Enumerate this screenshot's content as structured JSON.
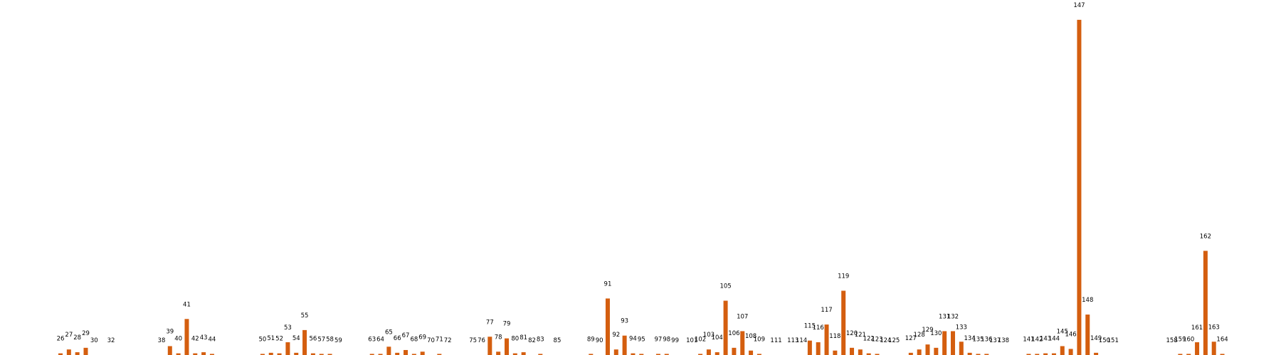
{
  "chart_data": {
    "type": "bar",
    "title": "",
    "xlabel": "",
    "ylabel": "",
    "ylim": [
      0,
      61
    ],
    "grid": false,
    "legend": "none",
    "colors": {
      "bar": "#D45E0F",
      "text": "#000000",
      "background": "#ffffff"
    },
    "points": [
      {
        "x": 26,
        "label": "26",
        "value": 0.3
      },
      {
        "x": 27,
        "label": "27",
        "value": 1.0
      },
      {
        "x": 28,
        "label": "28",
        "value": 0.5
      },
      {
        "x": 29,
        "label": "29",
        "value": 1.3
      },
      {
        "x": 30,
        "label": "30",
        "value": 0.0
      },
      {
        "x": 32,
        "label": "32",
        "value": 0.0
      },
      {
        "x": 38,
        "label": "38",
        "value": 0.0
      },
      {
        "x": 39,
        "label": "39",
        "value": 1.6
      },
      {
        "x": 40,
        "label": "40",
        "value": 0.3
      },
      {
        "x": 41,
        "label": "41",
        "value": 6.5
      },
      {
        "x": 42,
        "label": "42",
        "value": 0.3
      },
      {
        "x": 43,
        "label": "43",
        "value": 0.5
      },
      {
        "x": 44,
        "label": "44",
        "value": 0.2
      },
      {
        "x": 50,
        "label": "50",
        "value": 0.2
      },
      {
        "x": 51,
        "label": "51",
        "value": 0.4
      },
      {
        "x": 52,
        "label": "52",
        "value": 0.3
      },
      {
        "x": 53,
        "label": "53",
        "value": 2.3
      },
      {
        "x": 54,
        "label": "54",
        "value": 0.4
      },
      {
        "x": 55,
        "label": "55",
        "value": 4.5
      },
      {
        "x": 56,
        "label": "56",
        "value": 0.3
      },
      {
        "x": 57,
        "label": "57",
        "value": 0.2
      },
      {
        "x": 58,
        "label": "58",
        "value": 0.2
      },
      {
        "x": 59,
        "label": "59",
        "value": 0.0
      },
      {
        "x": 63,
        "label": "63",
        "value": 0.2
      },
      {
        "x": 64,
        "label": "64",
        "value": 0.2
      },
      {
        "x": 65,
        "label": "65",
        "value": 1.5
      },
      {
        "x": 66,
        "label": "66",
        "value": 0.4
      },
      {
        "x": 67,
        "label": "67",
        "value": 0.9
      },
      {
        "x": 68,
        "label": "68",
        "value": 0.2
      },
      {
        "x": 69,
        "label": "69",
        "value": 0.6
      },
      {
        "x": 70,
        "label": "70",
        "value": 0.0
      },
      {
        "x": 71,
        "label": "71",
        "value": 0.2
      },
      {
        "x": 72,
        "label": "72",
        "value": 0.0
      },
      {
        "x": 75,
        "label": "75",
        "value": 0.0
      },
      {
        "x": 76,
        "label": "76",
        "value": 0.0
      },
      {
        "x": 77,
        "label": "77",
        "value": 3.3
      },
      {
        "x": 78,
        "label": "78",
        "value": 0.6
      },
      {
        "x": 79,
        "label": "79",
        "value": 3.0
      },
      {
        "x": 80,
        "label": "80",
        "value": 0.3
      },
      {
        "x": 81,
        "label": "81",
        "value": 0.5
      },
      {
        "x": 82,
        "label": "82",
        "value": 0.0
      },
      {
        "x": 83,
        "label": "83",
        "value": 0.2
      },
      {
        "x": 85,
        "label": "85",
        "value": 0.0
      },
      {
        "x": 89,
        "label": "89",
        "value": 0.2
      },
      {
        "x": 90,
        "label": "90",
        "value": 0.0
      },
      {
        "x": 91,
        "label": "91",
        "value": 10.2
      },
      {
        "x": 92,
        "label": "92",
        "value": 1.0
      },
      {
        "x": 93,
        "label": "93",
        "value": 3.5
      },
      {
        "x": 94,
        "label": "94",
        "value": 0.3
      },
      {
        "x": 95,
        "label": "95",
        "value": 0.2
      },
      {
        "x": 97,
        "label": "97",
        "value": 0.2
      },
      {
        "x": 98,
        "label": "98",
        "value": 0.2
      },
      {
        "x": 99,
        "label": "99",
        "value": 0.0
      },
      {
        "x": 101,
        "label": "101",
        "value": 0.0
      },
      {
        "x": 102,
        "label": "102",
        "value": 0.2
      },
      {
        "x": 103,
        "label": "103",
        "value": 1.0
      },
      {
        "x": 104,
        "label": "104",
        "value": 0.5
      },
      {
        "x": 105,
        "label": "105",
        "value": 9.8
      },
      {
        "x": 106,
        "label": "106",
        "value": 1.3
      },
      {
        "x": 107,
        "label": "107",
        "value": 4.3
      },
      {
        "x": 108,
        "label": "108",
        "value": 0.8
      },
      {
        "x": 109,
        "label": "109",
        "value": 0.2
      },
      {
        "x": 111,
        "label": "111",
        "value": 0.0
      },
      {
        "x": 113,
        "label": "113",
        "value": 0.0
      },
      {
        "x": 114,
        "label": "114",
        "value": 0.0
      },
      {
        "x": 115,
        "label": "115",
        "value": 2.6
      },
      {
        "x": 116,
        "label": "116",
        "value": 2.3
      },
      {
        "x": 117,
        "label": "117",
        "value": 5.5
      },
      {
        "x": 118,
        "label": "118",
        "value": 0.8
      },
      {
        "x": 119,
        "label": "119",
        "value": 11.6
      },
      {
        "x": 120,
        "label": "120",
        "value": 1.3
      },
      {
        "x": 121,
        "label": "121",
        "value": 1.0
      },
      {
        "x": 122,
        "label": "122",
        "value": 0.3
      },
      {
        "x": 123,
        "label": "123",
        "value": 0.2
      },
      {
        "x": 124,
        "label": "124",
        "value": 0.0
      },
      {
        "x": 125,
        "label": "125",
        "value": 0.0
      },
      {
        "x": 127,
        "label": "127",
        "value": 0.4
      },
      {
        "x": 128,
        "label": "128",
        "value": 1.0
      },
      {
        "x": 129,
        "label": "129",
        "value": 1.9
      },
      {
        "x": 130,
        "label": "130",
        "value": 1.3
      },
      {
        "x": 131,
        "label": "131",
        "value": 4.3
      },
      {
        "x": 132,
        "label": "132",
        "value": 4.3
      },
      {
        "x": 133,
        "label": "133",
        "value": 2.4
      },
      {
        "x": 134,
        "label": "134",
        "value": 0.4
      },
      {
        "x": 135,
        "label": "135",
        "value": 0.2
      },
      {
        "x": 136,
        "label": "136",
        "value": 0.2
      },
      {
        "x": 137,
        "label": "137",
        "value": 0.0
      },
      {
        "x": 138,
        "label": "138",
        "value": 0.0
      },
      {
        "x": 141,
        "label": "141",
        "value": 0.2
      },
      {
        "x": 142,
        "label": "142",
        "value": 0.2
      },
      {
        "x": 143,
        "label": "143",
        "value": 0.3
      },
      {
        "x": 144,
        "label": "144",
        "value": 0.3
      },
      {
        "x": 145,
        "label": "145",
        "value": 1.6
      },
      {
        "x": 146,
        "label": "146",
        "value": 1.1
      },
      {
        "x": 147,
        "label": "147",
        "value": 60.5
      },
      {
        "x": 148,
        "label": "148",
        "value": 7.3
      },
      {
        "x": 149,
        "label": "149",
        "value": 0.4
      },
      {
        "x": 150,
        "label": "150",
        "value": 0.0
      },
      {
        "x": 151,
        "label": "151",
        "value": 0.0
      },
      {
        "x": 158,
        "label": "158",
        "value": 0.0
      },
      {
        "x": 159,
        "label": "159",
        "value": 0.2
      },
      {
        "x": 160,
        "label": "160",
        "value": 0.2
      },
      {
        "x": 161,
        "label": "161",
        "value": 2.3
      },
      {
        "x": 162,
        "label": "162",
        "value": 18.8
      },
      {
        "x": 163,
        "label": "163",
        "value": 2.4
      },
      {
        "x": 164,
        "label": "164",
        "value": 0.2
      }
    ]
  }
}
